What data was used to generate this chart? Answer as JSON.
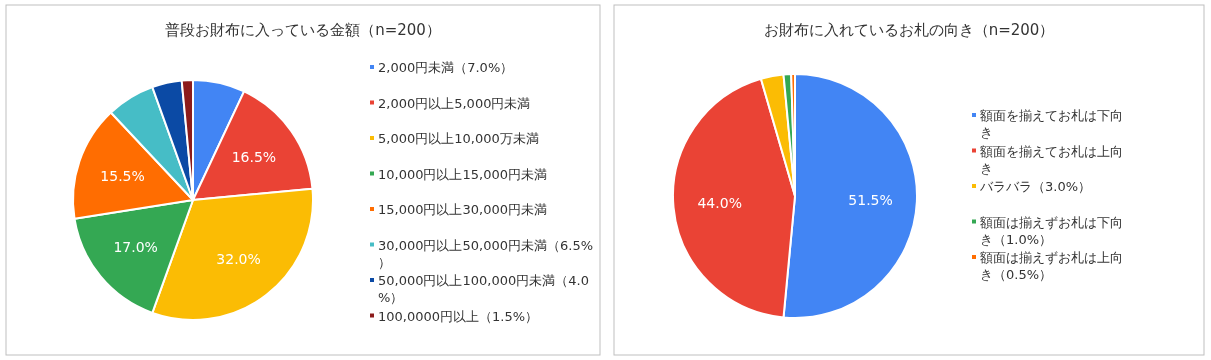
{
  "chart_data": [
    {
      "type": "pie",
      "title": "普段お財布に入っている金額（n=200）",
      "legend": "right",
      "categories": [
        "2,000円未満（7.0%）",
        "2,000円以上5,000円未満",
        "5,000円以上10,000万未満",
        "10,000円以上15,000円未満",
        "15,000円以上30,000円未満",
        "30,000円以上50,000円未満（6.5%）",
        "50,000円以上100,000円未満（4.0%）",
        "100,0000円以上（1.5%）"
      ],
      "values": [
        7.0,
        16.5,
        32.0,
        17.0,
        15.5,
        6.5,
        4.0,
        1.5
      ],
      "colors": [
        "#4285f4",
        "#ea4335",
        "#fbbc04",
        "#34a853",
        "#ff6d01",
        "#46bdc6",
        "#0b4aa5",
        "#8c1b1b"
      ],
      "value_labels": [
        null,
        "16.5%",
        "32.0%",
        "17.0%",
        "15.5%",
        null,
        null,
        null
      ]
    },
    {
      "type": "pie",
      "title": "お財布に入れているお札の向き（n=200）",
      "legend": "right",
      "categories": [
        "額面を揃えてお札は下向き",
        "額面を揃えてお札は上向き",
        "バラバラ（3.0%）",
        "額面は揃えずお札は下向き（1.0%）",
        "額面は揃えずお札は上向き（0.5%）"
      ],
      "values": [
        51.5,
        44.0,
        3.0,
        1.0,
        0.5
      ],
      "colors": [
        "#4285f4",
        "#ea4335",
        "#fbbc04",
        "#34a853",
        "#ff6d01"
      ],
      "value_labels": [
        "51.5%",
        "44.0%",
        null,
        null,
        null
      ]
    }
  ]
}
